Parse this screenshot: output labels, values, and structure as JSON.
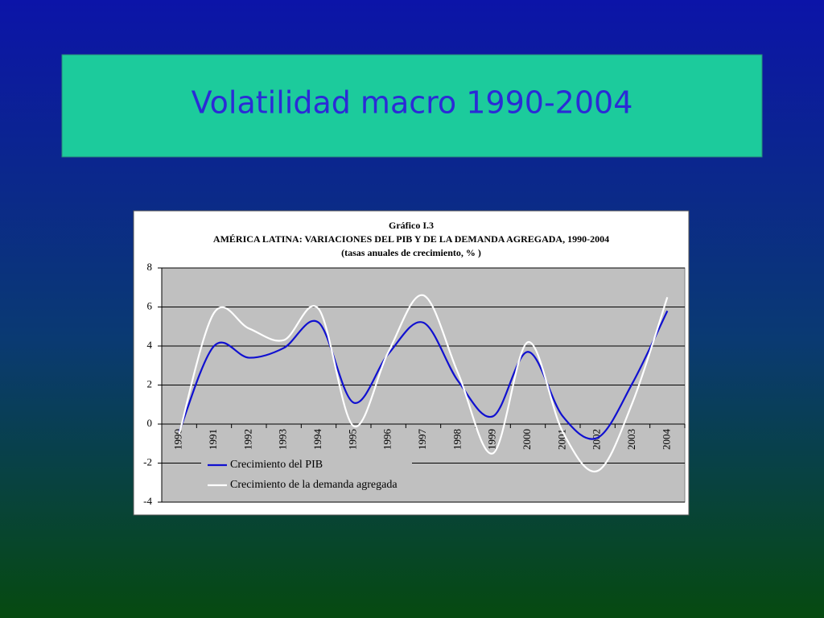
{
  "slide": {
    "title": "Volatilidad macro 1990-2004"
  },
  "chart_data": {
    "type": "line",
    "title": "Gráfico I.3",
    "subtitle": "AMÉRICA LATINA: VARIACIONES DEL PIB Y DE LA DEMANDA AGREGADA, 1990-2004",
    "units": "(tasas anuales de crecimiento, % )",
    "categories": [
      "1990",
      "1991",
      "1992",
      "1993",
      "1994",
      "1995",
      "1996",
      "1997",
      "1998",
      "1999",
      "2000",
      "2001",
      "2002",
      "2003",
      "2004"
    ],
    "series": [
      {
        "name": "Crecimiento del PIB",
        "color": "#1010d0",
        "values": [
          -0.4,
          4.0,
          3.4,
          3.9,
          5.2,
          1.1,
          3.6,
          5.2,
          2.2,
          0.4,
          3.7,
          0.4,
          -0.7,
          2.1,
          5.8
        ]
      },
      {
        "name": "Crecimiento de la demanda agregada",
        "color": "#ffffff",
        "values": [
          -0.5,
          5.7,
          4.9,
          4.3,
          5.9,
          -0.1,
          3.7,
          6.6,
          2.6,
          -1.5,
          4.2,
          -0.4,
          -2.4,
          1.1,
          6.5
        ]
      }
    ],
    "ylim": [
      -4,
      8
    ],
    "yticks": [
      -4,
      -2,
      0,
      2,
      4,
      6,
      8
    ],
    "grid": true,
    "legend": "lower-left",
    "background": "#c0c0c0"
  }
}
